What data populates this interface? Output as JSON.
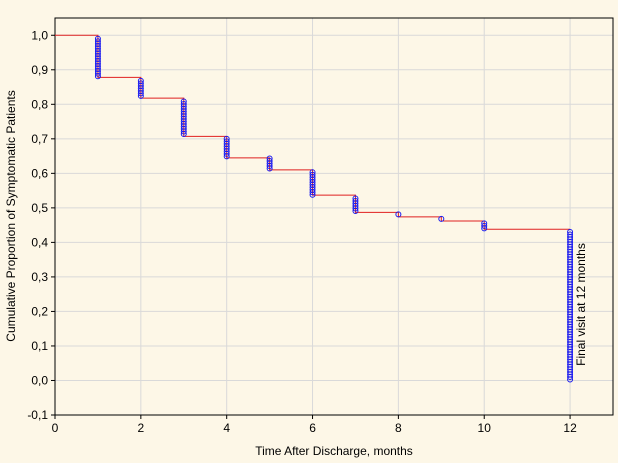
{
  "chart_data": {
    "type": "line",
    "title": "",
    "xlabel": "Time After Discharge, months",
    "ylabel": "Cumulative Proportion of Symptomatic Patients",
    "xlim": [
      0,
      13
    ],
    "ylim": [
      -0.1,
      1.05
    ],
    "x_ticks": [
      0,
      2,
      4,
      6,
      8,
      10,
      12
    ],
    "x_tick_labels": [
      "0",
      "2",
      "4",
      "6",
      "8",
      "10",
      "12"
    ],
    "y_ticks": [
      -0.1,
      0,
      0.1,
      0.2,
      0.3,
      0.4,
      0.5,
      0.6,
      0.7,
      0.8,
      0.9,
      1.0
    ],
    "y_tick_labels": [
      "-0,1",
      "0,0",
      "0,1",
      "0,2",
      "0,3",
      "0,4",
      "0,5",
      "0,6",
      "0,7",
      "0,8",
      "0,9",
      "1,0"
    ],
    "grid": true,
    "line_color": "#e02020",
    "marker_color": "#1a1aee",
    "step_curve": {
      "x": [
        0,
        1,
        2,
        3,
        4,
        5,
        6,
        7,
        8,
        9,
        10,
        12
      ],
      "y": [
        1.0,
        0.878,
        0.818,
        0.707,
        0.645,
        0.61,
        0.537,
        0.487,
        0.474,
        0.462,
        0.438,
        0.438
      ]
    },
    "censored_markers": [
      {
        "x": 1,
        "y_top": 0.99,
        "y_bottom": 0.878
      },
      {
        "x": 2,
        "y_top": 0.868,
        "y_bottom": 0.818
      },
      {
        "x": 3,
        "y_top": 0.808,
        "y_bottom": 0.707
      },
      {
        "x": 4,
        "y_top": 0.7,
        "y_bottom": 0.645
      },
      {
        "x": 5,
        "y_top": 0.643,
        "y_bottom": 0.61
      },
      {
        "x": 6,
        "y_top": 0.603,
        "y_bottom": 0.537
      },
      {
        "x": 7,
        "y_top": 0.527,
        "y_bottom": 0.487
      },
      {
        "x": 8,
        "y_top": 0.481,
        "y_bottom": 0.474
      },
      {
        "x": 9,
        "y_top": 0.468,
        "y_bottom": 0.462
      },
      {
        "x": 10,
        "y_top": 0.455,
        "y_bottom": 0.438
      },
      {
        "x": 12,
        "y_top": 0.43,
        "y_bottom": 0.0
      }
    ],
    "annotations": [
      {
        "text": "Final visit at 12 months",
        "x": 12.35,
        "y": 0.22
      }
    ]
  }
}
